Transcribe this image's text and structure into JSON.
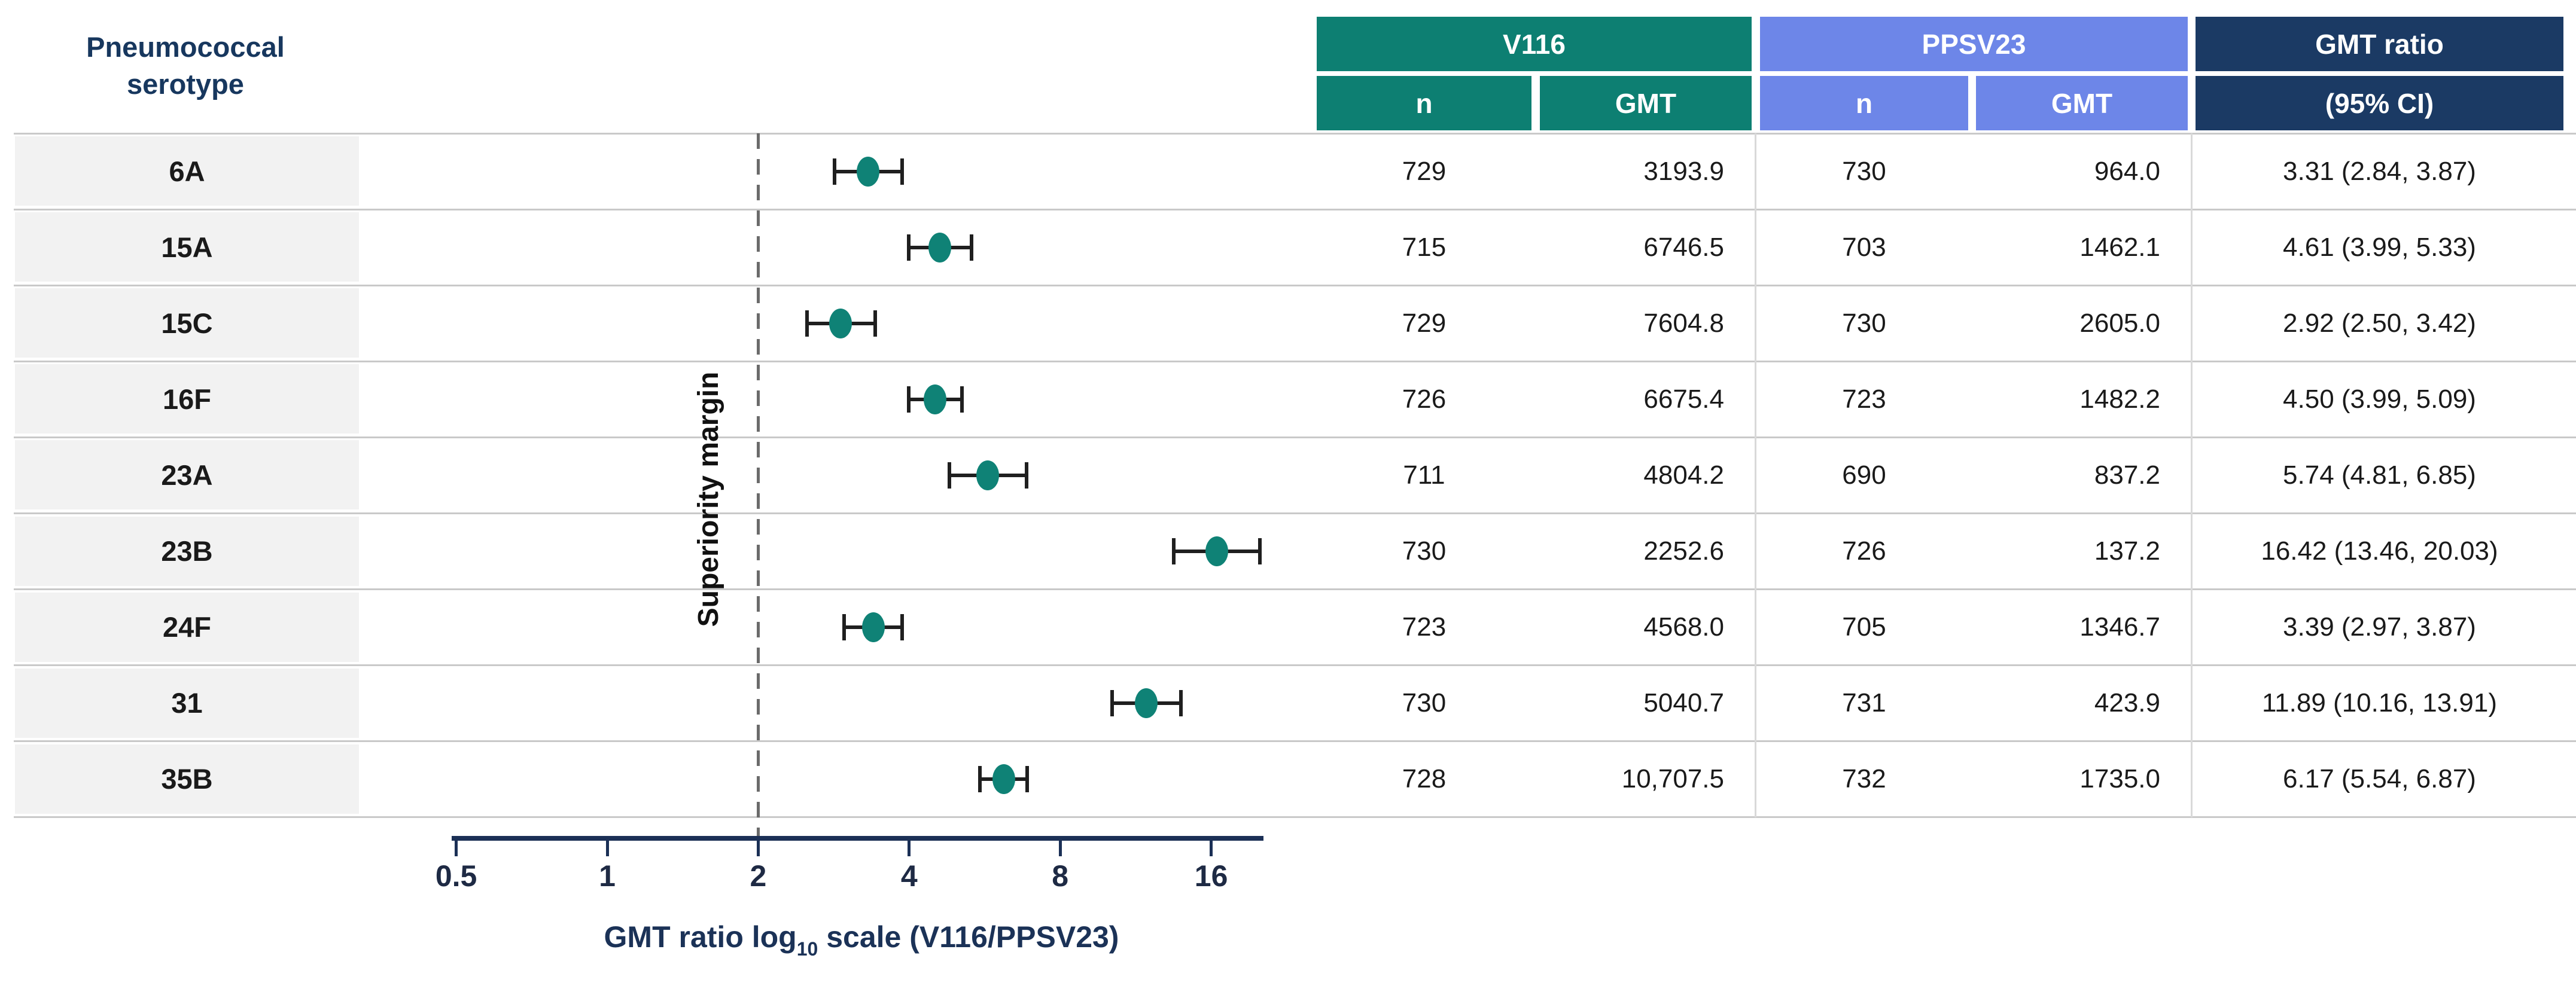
{
  "left_header": {
    "line1": "Pneumococcal",
    "line2": "serotype"
  },
  "table": {
    "groups": [
      {
        "id": "v116",
        "label": "V116"
      },
      {
        "id": "ppsv23",
        "label": "PPSV23"
      },
      {
        "id": "ratio",
        "label": "GMT ratio"
      }
    ],
    "sub_headers": {
      "v116_n": "n",
      "v116_gmt": "GMT",
      "ppsv23_n": "n",
      "ppsv23_gmt": "GMT",
      "ratio_ci": "(95% CI)"
    }
  },
  "chart_data": {
    "type": "forest",
    "xlabel_parts": {
      "pre": "GMT ratio log",
      "sub": "10",
      "post": " scale (V116/PPSV23)"
    },
    "x_scale": "log2",
    "x_ticks": [
      0.5,
      1,
      2,
      4,
      8,
      16
    ],
    "xlim": [
      0.5,
      20.5
    ],
    "grid": "horizontal-row-separators",
    "legend": "none",
    "superiority_margin": {
      "label": "Superiority margin",
      "x": 2,
      "line_style": "dashed"
    },
    "rows": [
      {
        "serotype": "6A",
        "v116_n": "729",
        "v116_gmt": "3193.9",
        "ppsv23_n": "730",
        "ppsv23_gmt": "964.0",
        "ratio": 3.31,
        "ci_low": 2.84,
        "ci_high": 3.87,
        "ratio_text": "3.31 (2.84, 3.87)"
      },
      {
        "serotype": "15A",
        "v116_n": "715",
        "v116_gmt": "6746.5",
        "ppsv23_n": "703",
        "ppsv23_gmt": "1462.1",
        "ratio": 4.61,
        "ci_low": 3.99,
        "ci_high": 5.33,
        "ratio_text": "4.61 (3.99, 5.33)"
      },
      {
        "serotype": "15C",
        "v116_n": "729",
        "v116_gmt": "7604.8",
        "ppsv23_n": "730",
        "ppsv23_gmt": "2605.0",
        "ratio": 2.92,
        "ci_low": 2.5,
        "ci_high": 3.42,
        "ratio_text": "2.92 (2.50, 3.42)"
      },
      {
        "serotype": "16F",
        "v116_n": "726",
        "v116_gmt": "6675.4",
        "ppsv23_n": "723",
        "ppsv23_gmt": "1482.2",
        "ratio": 4.5,
        "ci_low": 3.99,
        "ci_high": 5.09,
        "ratio_text": "4.50 (3.99, 5.09)"
      },
      {
        "serotype": "23A",
        "v116_n": "711",
        "v116_gmt": "4804.2",
        "ppsv23_n": "690",
        "ppsv23_gmt": "837.2",
        "ratio": 5.74,
        "ci_low": 4.81,
        "ci_high": 6.85,
        "ratio_text": "5.74 (4.81, 6.85)"
      },
      {
        "serotype": "23B",
        "v116_n": "730",
        "v116_gmt": "2252.6",
        "ppsv23_n": "726",
        "ppsv23_gmt": "137.2",
        "ratio": 16.42,
        "ci_low": 13.46,
        "ci_high": 20.03,
        "ratio_text": "16.42 (13.46, 20.03)"
      },
      {
        "serotype": "24F",
        "v116_n": "723",
        "v116_gmt": "4568.0",
        "ppsv23_n": "705",
        "ppsv23_gmt": "1346.7",
        "ratio": 3.39,
        "ci_low": 2.97,
        "ci_high": 3.87,
        "ratio_text": "3.39 (2.97, 3.87)"
      },
      {
        "serotype": "31",
        "v116_n": "730",
        "v116_gmt": "5040.7",
        "ppsv23_n": "731",
        "ppsv23_gmt": "423.9",
        "ratio": 11.89,
        "ci_low": 10.16,
        "ci_high": 13.91,
        "ratio_text": "11.89 (10.16, 13.91)"
      },
      {
        "serotype": "35B",
        "v116_n": "728",
        "v116_gmt": "10,707.5",
        "ppsv23_n": "732",
        "ppsv23_gmt": "1735.0",
        "ratio": 6.17,
        "ci_low": 5.54,
        "ci_high": 6.87,
        "ratio_text": "6.17 (5.54, 6.87)"
      }
    ]
  },
  "colors": {
    "v116_header": "#0D7F72",
    "ppsv23_header": "#6D86E8",
    "gmt_ratio_header": "#1B3A64",
    "marker_dot": "#0F8276",
    "row_label_bg": "#F2F2F2",
    "gridline": "#C9C9C9"
  }
}
